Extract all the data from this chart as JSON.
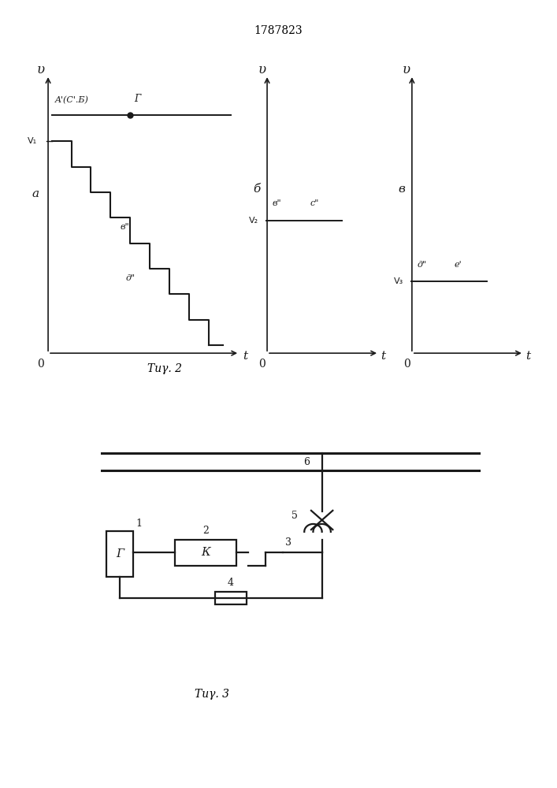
{
  "title": "1787823",
  "bg": "#f0ede8",
  "lc": "#1a1a1a",
  "fig2a": {
    "label": "a",
    "V1_label": "V₁",
    "A_label": "A'(С'.Б)",
    "B_label": "в\"",
    "D_label": "д\"",
    "G_label": "Г",
    "n_steps": 8
  },
  "fig2b": {
    "label": "б",
    "V2_label": "V₂",
    "B_label": "в\"",
    "C_label": "с\""
  },
  "fig2v": {
    "label": "в",
    "V3_label": "V₃",
    "D_label": "д\"",
    "E_label": "е'"
  },
  "fig2_caption": "Τиγ. 2",
  "fig3_caption": "Τиγ. 3"
}
